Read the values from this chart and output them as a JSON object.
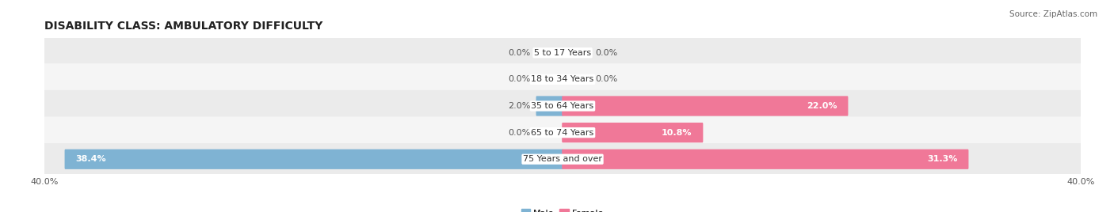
{
  "title": "DISABILITY CLASS: AMBULATORY DIFFICULTY",
  "source": "Source: ZipAtlas.com",
  "categories": [
    "5 to 17 Years",
    "18 to 34 Years",
    "35 to 64 Years",
    "65 to 74 Years",
    "75 Years and over"
  ],
  "male_values": [
    0.0,
    0.0,
    2.0,
    0.0,
    38.4
  ],
  "female_values": [
    0.0,
    0.0,
    22.0,
    10.8,
    31.3
  ],
  "x_max": 40.0,
  "male_color": "#7fb3d3",
  "female_color": "#f07898",
  "row_bg_even": "#ebebeb",
  "row_bg_odd": "#f5f5f5",
  "title_fontsize": 10,
  "label_fontsize": 8,
  "tick_fontsize": 8,
  "source_fontsize": 7.5,
  "value_label_threshold": 4.0
}
